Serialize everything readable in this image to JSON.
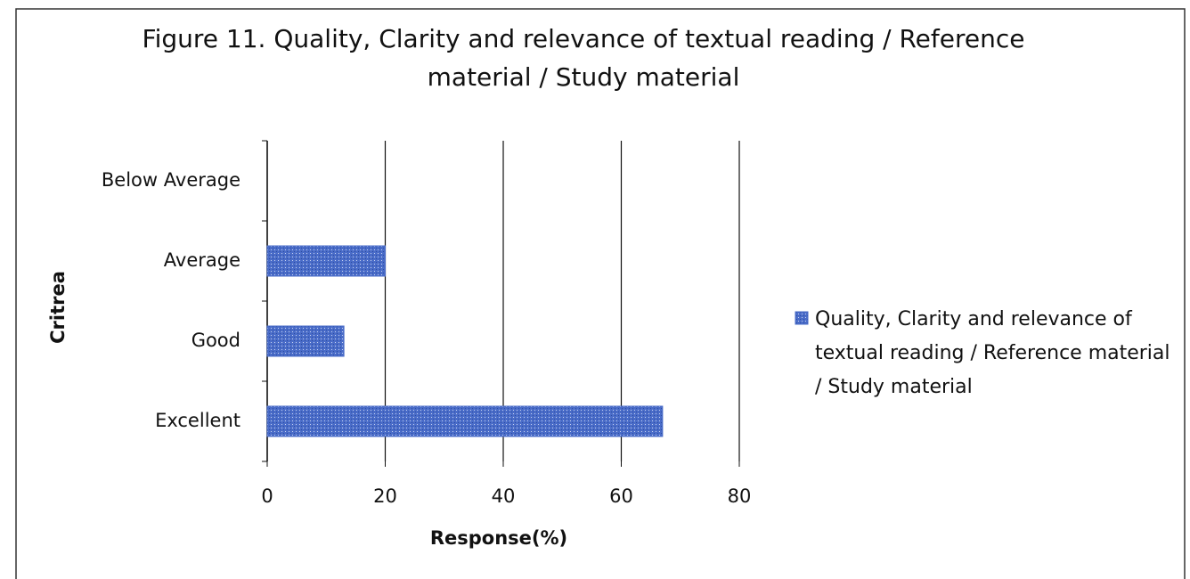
{
  "chart_data": {
    "type": "bar",
    "orientation": "horizontal",
    "title": "Figure 11. Quality, Clarity and relevance of textual reading / Reference material / Study material",
    "xlabel": "Response(%)",
    "ylabel": "Critrea",
    "categories": [
      "Below Average",
      "Average",
      "Good",
      "Excellent"
    ],
    "series": [
      {
        "name": "Quality, Clarity and relevance of textual reading / Reference material / Study material",
        "color": "#4a6cc8",
        "values": [
          0,
          20,
          13,
          67
        ]
      }
    ],
    "xlim": [
      0,
      80
    ],
    "xticks": [
      0,
      20,
      40,
      60,
      80
    ],
    "grid": true,
    "legend": "right"
  }
}
